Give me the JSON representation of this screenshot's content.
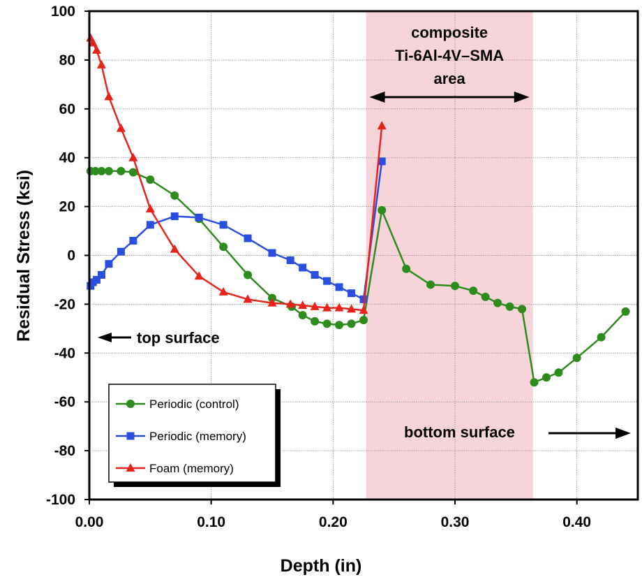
{
  "chart_data": {
    "type": "line",
    "xlabel": "Depth (in)",
    "ylabel": "Residual Stress (ksi)",
    "xlim": [
      0,
      0.45
    ],
    "ylim": [
      -100,
      100
    ],
    "x_ticks": [
      "0.00",
      "0.10",
      "0.20",
      "0.30",
      "0.40"
    ],
    "y_ticks": [
      "100",
      "80",
      "60",
      "40",
      "20",
      "0",
      "-20",
      "-40",
      "-60",
      "-80",
      "-100"
    ],
    "grid": true,
    "legend_position": "bottom-left",
    "shaded_region": {
      "x": [
        0.227,
        0.364
      ],
      "color": "#f7d4da",
      "label_lines": [
        "composite",
        "Ti-6Al-4V–SMA",
        "area"
      ]
    },
    "annotations": {
      "top_surface": "top surface",
      "bottom_surface": "bottom surface"
    },
    "series": [
      {
        "name": "Periodic (control)",
        "color": "#2e8b1e",
        "marker": "circle",
        "x": [
          0.001,
          0.005,
          0.01,
          0.016,
          0.026,
          0.036,
          0.05,
          0.07,
          0.09,
          0.11,
          0.13,
          0.15,
          0.166,
          0.175,
          0.185,
          0.195,
          0.205,
          0.215,
          0.225,
          0.24,
          0.26,
          0.28,
          0.3,
          0.315,
          0.325,
          0.335,
          0.345,
          0.355,
          0.365,
          0.375,
          0.385,
          0.4,
          0.42,
          0.44
        ],
        "y": [
          34.5,
          34.5,
          34.5,
          34.5,
          34.5,
          34,
          31,
          24.5,
          15,
          3.5,
          -8,
          -17.5,
          -21,
          -24.5,
          -27,
          -28,
          -28.5,
          -28,
          -26.5,
          18.5,
          -5.5,
          -12,
          -12.5,
          -14.5,
          -17,
          -19.5,
          -21,
          -22,
          -52,
          -50,
          -48,
          -42,
          -33.5,
          -23
        ]
      },
      {
        "name": "Periodic (memory)",
        "color": "#2a4ee0",
        "marker": "square",
        "x": [
          0.001,
          0.003,
          0.006,
          0.01,
          0.016,
          0.026,
          0.036,
          0.05,
          0.07,
          0.09,
          0.11,
          0.13,
          0.15,
          0.165,
          0.175,
          0.185,
          0.195,
          0.205,
          0.215,
          0.225,
          0.24
        ],
        "y": [
          -12.5,
          -11,
          -10,
          -8,
          -3.5,
          1.5,
          6,
          12.5,
          16,
          15.5,
          12.5,
          7,
          1,
          -2,
          -5,
          -8,
          -10.5,
          -13,
          -15.5,
          -18,
          38.5
        ]
      },
      {
        "name": "Foam (memory)",
        "color": "#e8231a",
        "marker": "triangle",
        "x": [
          0.001,
          0.003,
          0.006,
          0.01,
          0.016,
          0.026,
          0.036,
          0.05,
          0.07,
          0.09,
          0.11,
          0.13,
          0.15,
          0.165,
          0.175,
          0.185,
          0.195,
          0.205,
          0.215,
          0.225,
          0.24
        ],
        "y": [
          89,
          87,
          84,
          78,
          65,
          52,
          40,
          19,
          2.5,
          -8.5,
          -15,
          -18,
          -19.5,
          -20,
          -20.5,
          -21,
          -21.5,
          -21.5,
          -22,
          -22.5,
          53
        ]
      }
    ]
  }
}
